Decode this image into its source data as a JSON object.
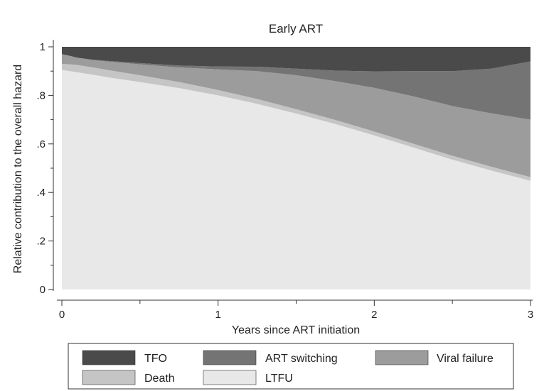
{
  "chart_data": {
    "type": "area",
    "stacked": true,
    "title": "Early ART",
    "xlabel": "Years since ART initiation",
    "ylabel": "Relative contribution to the overall hazard",
    "xlim": [
      0,
      3.05
    ],
    "ylim": [
      0,
      1
    ],
    "xticks": [
      0,
      1,
      2,
      3
    ],
    "xtick_labels": [
      "0",
      "1",
      "2",
      "3"
    ],
    "xminor_ticks": [
      0.5,
      1.5,
      2.5
    ],
    "yticks": [
      0,
      0.2,
      0.4,
      0.6,
      0.8,
      1
    ],
    "ytick_labels": [
      "0",
      ".2",
      ".4",
      ".6",
      ".8",
      "1"
    ],
    "yminor_ticks": [
      0.1,
      0.3,
      0.5,
      0.7,
      0.9
    ],
    "grid": false,
    "legend_position": "bottom",
    "x": [
      0,
      0.05,
      0.1,
      0.2,
      0.3,
      0.5,
      0.75,
      1.0,
      1.25,
      1.5,
      1.75,
      2.0,
      2.25,
      2.5,
      2.75,
      3.0
    ],
    "series": [
      {
        "name": "LTFU",
        "color": "#e8e8e8",
        "values": [
          0.905,
          0.9,
          0.895,
          0.885,
          0.874,
          0.855,
          0.83,
          0.8,
          0.765,
          0.725,
          0.682,
          0.635,
          0.585,
          0.535,
          0.49,
          0.448
        ]
      },
      {
        "name": "Death",
        "color": "#c5c5c5",
        "values": [
          0.025,
          0.028,
          0.03,
          0.03,
          0.03,
          0.028,
          0.025,
          0.022,
          0.02,
          0.018,
          0.017,
          0.016,
          0.016,
          0.016,
          0.016,
          0.015
        ]
      },
      {
        "name": "Viral failure",
        "color": "#9c9c9c",
        "values": [
          0.04,
          0.035,
          0.03,
          0.03,
          0.035,
          0.045,
          0.06,
          0.085,
          0.115,
          0.14,
          0.16,
          0.18,
          0.195,
          0.205,
          0.22,
          0.237
        ]
      },
      {
        "name": "ART switching",
        "color": "#747474",
        "values": [
          0.0,
          0.0,
          0.0,
          0.002,
          0.003,
          0.005,
          0.008,
          0.012,
          0.018,
          0.027,
          0.043,
          0.068,
          0.104,
          0.144,
          0.184,
          0.24
        ]
      },
      {
        "name": "TFO",
        "color": "#4a4a4a",
        "values": [
          0.03,
          0.037,
          0.045,
          0.053,
          0.058,
          0.067,
          0.077,
          0.081,
          0.082,
          0.09,
          0.098,
          0.101,
          0.1,
          0.1,
          0.09,
          0.06
        ]
      }
    ],
    "legend_order": [
      "TFO",
      "ART switching",
      "Viral failure",
      "Death",
      "LTFU"
    ]
  }
}
